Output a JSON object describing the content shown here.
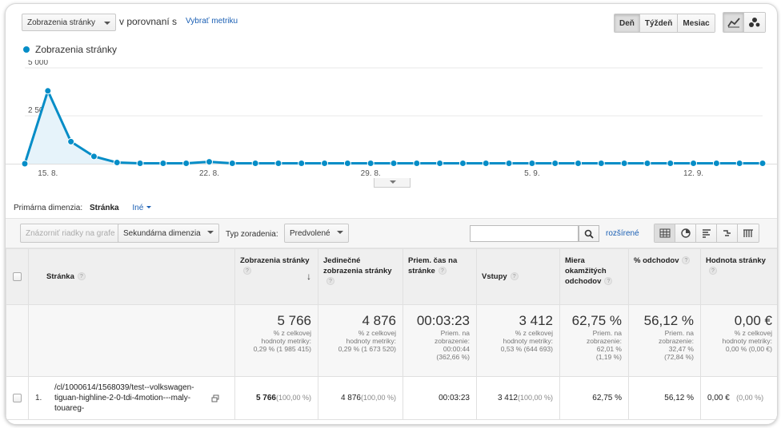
{
  "header": {
    "metric_select": "Zobrazenia stránky",
    "vs_label": "v porovnaní s",
    "choose_metric": "Vybrať metriku",
    "period_buttons": [
      "Deň",
      "Týždeň",
      "Mesiac"
    ],
    "active_period": "Deň"
  },
  "legend": {
    "series_name": "Zobrazenia stránky",
    "color": "#058dc7"
  },
  "chart_data": {
    "type": "line",
    "series": [
      {
        "name": "Zobrazenia stránky",
        "values": [
          0,
          3800,
          1150,
          380,
          60,
          20,
          20,
          20,
          100,
          20,
          20,
          20,
          20,
          20,
          20,
          20,
          20,
          20,
          20,
          20,
          20,
          20,
          20,
          20,
          20,
          20,
          20,
          20,
          20,
          20,
          20,
          20,
          20
        ]
      }
    ],
    "y_tick_labels": [
      "5 000",
      "2 500"
    ],
    "x_tick_labels": [
      "15. 8.",
      "22. 8.",
      "29. 8.",
      "5. 9.",
      "12. 9."
    ],
    "ylim": [
      0,
      5000
    ],
    "grid": true
  },
  "dimension": {
    "label": "Primárna dimenzia:",
    "active": "Stránka",
    "other": "Iné"
  },
  "toolbar": {
    "plot_rows": "Znázorniť riadky na grafe",
    "secondary_dim": "Sekundárna dimenzia",
    "sort_label": "Typ zoradenia:",
    "sort_value": "Predvolené",
    "search_placeholder": "",
    "advanced": "rozšírené"
  },
  "table": {
    "headers": {
      "page": "Stránka",
      "pageviews": "Zobrazenia stránky",
      "unique": "Jedinečné zobrazenia stránky",
      "avg_time": "Priem. čas na stránke",
      "entrances": "Vstupy",
      "bounce": "Miera okamžitých odchodov",
      "exit": "% odchodov",
      "value": "Hodnota stránky"
    },
    "summary": {
      "pageviews": {
        "big": "5 766",
        "l1": "% z celkovej",
        "l2": "hodnoty metriky:",
        "l3": "0,29 % (1 985 415)"
      },
      "unique": {
        "big": "4 876",
        "l1": "% z celkovej",
        "l2": "hodnoty metriky:",
        "l3": "0,29 % (1 673 520)"
      },
      "avg_time": {
        "big": "00:03:23",
        "l1": "Priem. na",
        "l2": "zobrazenie:",
        "l3": "00:00:44",
        "l4": "(362,66 %)"
      },
      "entrances": {
        "big": "3 412",
        "l1": "% z celkovej",
        "l2": "hodnoty metriky:",
        "l3": "0,53 % (644 693)"
      },
      "bounce": {
        "big": "62,75 %",
        "l1": "Priem. na",
        "l2": "zobrazenie:",
        "l3": "62,01 %",
        "l4": "(1,19 %)"
      },
      "exit": {
        "big": "56,12 %",
        "l1": "Priem. na",
        "l2": "zobrazenie:",
        "l3": "32,47 %",
        "l4": "(72,84 %)"
      },
      "value": {
        "big": "0,00 €",
        "l1": "% z celkovej",
        "l2": "hodnoty metriky:",
        "l3": "0,00 % (0,00 €)"
      }
    },
    "row": {
      "index": "1.",
      "path": "/cl/1000614/1568039/test--volkswagen-tiguan-highline-2-0-tdi-4motion---maly-touareg-",
      "pageviews": "5 766",
      "pageviews_pct": "(100,00 %)",
      "unique": "4 876",
      "unique_pct": "(100,00 %)",
      "avg_time": "00:03:23",
      "entrances": "3 412",
      "entrances_pct": "(100,00 %)",
      "bounce": "62,75 %",
      "exit": "56,12 %",
      "value": "0,00 €",
      "value_pct": "(0,00 %)"
    }
  }
}
